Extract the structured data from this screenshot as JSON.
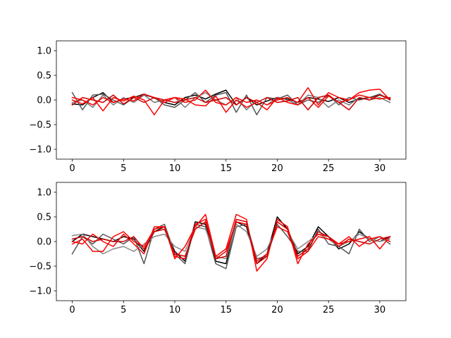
{
  "chart_data": [
    {
      "type": "line",
      "title": "",
      "xlabel": "",
      "ylabel": "",
      "xlim": [
        -1.55,
        32.55
      ],
      "ylim": [
        -1.2,
        1.2
      ],
      "xticks": [
        0,
        5,
        10,
        15,
        20,
        25,
        30
      ],
      "yticks": [
        -1.0,
        -0.5,
        0.0,
        0.5,
        1.0
      ],
      "xtick_labels": [
        "0",
        "5",
        "10",
        "15",
        "20",
        "25",
        "30"
      ],
      "ytick_labels": [
        "−1.0",
        "−0.5",
        "0.0",
        "0.5",
        "1.0"
      ],
      "grid": false,
      "x": [
        0,
        1,
        2,
        3,
        4,
        5,
        6,
        7,
        8,
        9,
        10,
        11,
        12,
        13,
        14,
        15,
        16,
        17,
        18,
        19,
        20,
        21,
        22,
        23,
        24,
        25,
        26,
        27,
        28,
        29,
        30,
        31
      ],
      "series": [
        {
          "color": "#000000",
          "values": [
            -0.08,
            -0.1,
            0.05,
            0.15,
            -0.05,
            0.02,
            0.05,
            0.12,
            0.04,
            -0.05,
            -0.1,
            0.05,
            0.1,
            0.02,
            0.12,
            0.2,
            -0.1,
            0.05,
            -0.1,
            -0.02,
            0.05,
            0.02,
            -0.05,
            0.05,
            0.02,
            -0.03,
            0.05,
            -0.05,
            0.02,
            0.05,
            0.1,
            0.03
          ]
        },
        {
          "color": "#555555",
          "values": [
            0.15,
            -0.2,
            0.1,
            0.12,
            0.0,
            -0.1,
            0.05,
            0.1,
            0.05,
            -0.1,
            -0.15,
            0.0,
            0.15,
            -0.05,
            0.1,
            0.15,
            -0.25,
            0.1,
            -0.3,
            0.05,
            0.02,
            0.1,
            -0.1,
            0.0,
            -0.05,
            0.1,
            -0.1,
            0.05,
            0.0,
            0.05,
            0.12,
            0.0
          ]
        },
        {
          "color": "#777777",
          "values": [
            -0.05,
            0.0,
            -0.15,
            0.1,
            -0.1,
            0.05,
            -0.05,
            0.1,
            -0.05,
            0.0,
            0.05,
            -0.15,
            0.05,
            0.15,
            0.0,
            -0.1,
            0.05,
            -0.2,
            0.0,
            -0.1,
            0.05,
            0.0,
            -0.1,
            0.1,
            0.05,
            -0.15,
            0.0,
            -0.1,
            0.05,
            0.0,
            0.05,
            -0.05
          ]
        },
        {
          "color": "#ff0000",
          "values": [
            0.0,
            -0.08,
            0.05,
            -0.22,
            0.05,
            -0.02,
            0.08,
            0.0,
            -0.3,
            0.0,
            0.05,
            -0.05,
            0.0,
            0.2,
            -0.05,
            -0.1,
            0.05,
            -0.05,
            0.0,
            -0.1,
            0.0,
            0.05,
            -0.05,
            0.25,
            -0.1,
            0.15,
            0.05,
            0.0,
            0.15,
            0.2,
            0.22,
            0.0
          ]
        },
        {
          "color": "#ff0000",
          "values": [
            0.05,
            0.0,
            -0.1,
            0.05,
            -0.05,
            0.02,
            -0.02,
            0.12,
            0.05,
            -0.05,
            0.05,
            0.02,
            -0.1,
            -0.12,
            0.08,
            -0.25,
            0.0,
            -0.15,
            -0.05,
            -0.2,
            0.05,
            -0.05,
            -0.1,
            0.05,
            -0.15,
            0.08,
            -0.05,
            0.0,
            0.1,
            0.05,
            0.02,
            0.05
          ]
        },
        {
          "color": "#cc0000",
          "values": [
            -0.1,
            0.05,
            0.0,
            -0.05,
            0.1,
            -0.08,
            0.05,
            -0.05,
            0.05,
            0.0,
            -0.05,
            0.0,
            0.05,
            -0.05,
            0.0,
            0.05,
            -0.1,
            0.05,
            -0.05,
            0.05,
            -0.05,
            -0.02,
            0.05,
            -0.2,
            0.05,
            0.1,
            -0.05,
            -0.2,
            0.05,
            0.0,
            0.1,
            0.02
          ]
        }
      ]
    },
    {
      "type": "line",
      "title": "",
      "xlabel": "",
      "ylabel": "",
      "xlim": [
        -1.55,
        32.55
      ],
      "ylim": [
        -1.2,
        1.2
      ],
      "xticks": [
        0,
        5,
        10,
        15,
        20,
        25,
        30
      ],
      "yticks": [
        -1.0,
        -0.5,
        0.0,
        0.5,
        1.0
      ],
      "xtick_labels": [
        "0",
        "5",
        "10",
        "15",
        "20",
        "25",
        "30"
      ],
      "ytick_labels": [
        "−1.0",
        "−0.5",
        "0.0",
        "0.5",
        "1.0"
      ],
      "grid": false,
      "x": [
        0,
        1,
        2,
        3,
        4,
        5,
        6,
        7,
        8,
        9,
        10,
        11,
        12,
        13,
        14,
        15,
        16,
        17,
        18,
        19,
        20,
        21,
        22,
        23,
        24,
        25,
        26,
        27,
        28,
        29,
        30,
        31
      ],
      "series": [
        {
          "color": "#000000",
          "values": [
            0.0,
            0.15,
            0.1,
            0.05,
            0.0,
            0.1,
            0.05,
            -0.2,
            0.2,
            0.3,
            -0.2,
            -0.4,
            0.4,
            0.35,
            -0.4,
            -0.45,
            0.4,
            0.3,
            -0.45,
            -0.25,
            0.5,
            0.25,
            -0.25,
            -0.1,
            0.3,
            0.1,
            -0.15,
            -0.05,
            0.2,
            0.05,
            0.0,
            0.1
          ]
        },
        {
          "color": "#555555",
          "values": [
            -0.25,
            0.1,
            -0.05,
            0.15,
            0.05,
            -0.05,
            0.1,
            -0.45,
            0.25,
            0.35,
            -0.25,
            -0.45,
            0.35,
            0.3,
            -0.45,
            -0.55,
            0.3,
            0.35,
            -0.35,
            -0.3,
            0.35,
            0.1,
            -0.2,
            -0.2,
            0.25,
            -0.05,
            -0.1,
            -0.25,
            0.25,
            0.0,
            0.1,
            -0.05
          ]
        },
        {
          "color": "#888888",
          "values": [
            0.12,
            0.15,
            -0.1,
            -0.25,
            -0.15,
            -0.1,
            -0.2,
            -0.05,
            0.1,
            0.15,
            -0.1,
            -0.2,
            0.3,
            0.25,
            -0.3,
            -0.35,
            0.35,
            0.2,
            -0.3,
            -0.15,
            0.3,
            0.2,
            -0.15,
            0.0,
            0.15,
            0.05,
            -0.1,
            0.0,
            0.15,
            0.05,
            0.0,
            0.05
          ]
        },
        {
          "color": "#ff0000",
          "values": [
            -0.05,
            0.05,
            -0.2,
            -0.2,
            0.1,
            0.2,
            0.0,
            -0.1,
            0.25,
            0.3,
            -0.35,
            -0.1,
            0.3,
            0.55,
            -0.3,
            -0.15,
            0.55,
            0.45,
            -0.6,
            -0.35,
            0.45,
            0.3,
            -0.45,
            -0.05,
            0.15,
            0.1,
            -0.05,
            0.0,
            0.05,
            0.1,
            -0.15,
            0.1
          ]
        },
        {
          "color": "#ff0000",
          "values": [
            0.0,
            -0.05,
            0.15,
            0.0,
            -0.1,
            0.15,
            -0.05,
            -0.25,
            0.3,
            0.3,
            -0.3,
            -0.35,
            0.35,
            0.45,
            -0.35,
            -0.2,
            0.4,
            0.35,
            -0.4,
            -0.25,
            0.3,
            0.2,
            -0.35,
            -0.2,
            0.1,
            0.05,
            -0.05,
            0.1,
            -0.1,
            0.05,
            0.1,
            0.0
          ]
        },
        {
          "color": "#cc0000",
          "values": [
            0.05,
            0.1,
            0.0,
            0.05,
            0.0,
            0.0,
            0.1,
            -0.15,
            0.2,
            0.25,
            -0.25,
            -0.3,
            0.25,
            0.4,
            -0.35,
            -0.3,
            0.45,
            0.4,
            -0.45,
            -0.3,
            0.4,
            0.25,
            -0.3,
            -0.15,
            0.2,
            0.1,
            -0.1,
            0.05,
            0.0,
            -0.05,
            0.05,
            0.1
          ]
        }
      ]
    }
  ]
}
